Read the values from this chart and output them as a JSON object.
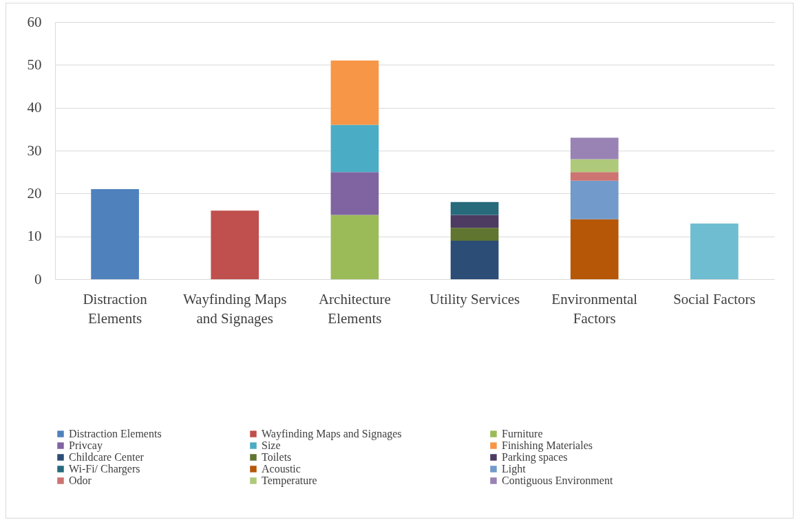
{
  "chart_data": {
    "type": "bar",
    "stacked": true,
    "categories": [
      "Distraction Elements",
      "Wayfinding Maps and Signages",
      "Architecture Elements",
      "Utility Services",
      "Environmental Factors",
      "Social Factors"
    ],
    "series": [
      {
        "name": "Distraction Elements",
        "color": "#4f81bd",
        "values": [
          21,
          null,
          null,
          null,
          null,
          null
        ]
      },
      {
        "name": "Wayfinding Maps and Signages",
        "color": "#c0504d",
        "values": [
          null,
          16,
          null,
          null,
          null,
          null
        ]
      },
      {
        "name": "Furniture",
        "color": "#9bbb59",
        "values": [
          null,
          null,
          15,
          null,
          null,
          null
        ]
      },
      {
        "name": "Privcay",
        "color": "#8064a2",
        "values": [
          null,
          null,
          10,
          null,
          null,
          null
        ]
      },
      {
        "name": "Size",
        "color": "#4bacc6",
        "values": [
          null,
          null,
          11,
          null,
          null,
          null
        ]
      },
      {
        "name": "Finishing Materiales",
        "color": "#f79646",
        "values": [
          null,
          null,
          15,
          null,
          null,
          null
        ]
      },
      {
        "name": "Childcare Center",
        "color": "#2c4d75",
        "values": [
          null,
          null,
          null,
          9,
          null,
          null
        ]
      },
      {
        "name": "Toilets",
        "color": "#5f7530",
        "values": [
          null,
          null,
          null,
          3,
          null,
          null
        ]
      },
      {
        "name": "Parking spaces",
        "color": "#4d3b62",
        "values": [
          null,
          null,
          null,
          3,
          null,
          null
        ]
      },
      {
        "name": "Wi-Fi/ Chargers",
        "color": "#276a7c",
        "values": [
          null,
          null,
          null,
          3,
          null,
          null
        ]
      },
      {
        "name": "Acoustic",
        "color": "#b65708",
        "values": [
          null,
          null,
          null,
          null,
          14,
          null
        ]
      },
      {
        "name": "Light",
        "color": "#729aca",
        "values": [
          null,
          null,
          null,
          null,
          9,
          null
        ]
      },
      {
        "name": "Odor",
        "color": "#cd7371",
        "values": [
          null,
          null,
          null,
          null,
          2,
          null
        ]
      },
      {
        "name": "Temperature",
        "color": "#afc97a",
        "values": [
          null,
          null,
          null,
          null,
          3,
          null
        ]
      },
      {
        "name": "Contiguous Environment",
        "color": "#9983b5",
        "values": [
          null,
          null,
          null,
          null,
          5,
          null
        ]
      },
      {
        "color": "#6fbdd1",
        "values": [
          null,
          null,
          null,
          null,
          null,
          13
        ]
      }
    ],
    "ylim": [
      0,
      60
    ],
    "yticks": [
      0,
      10,
      20,
      30,
      40,
      50,
      60
    ],
    "grid": "y",
    "legend": "bottom"
  }
}
